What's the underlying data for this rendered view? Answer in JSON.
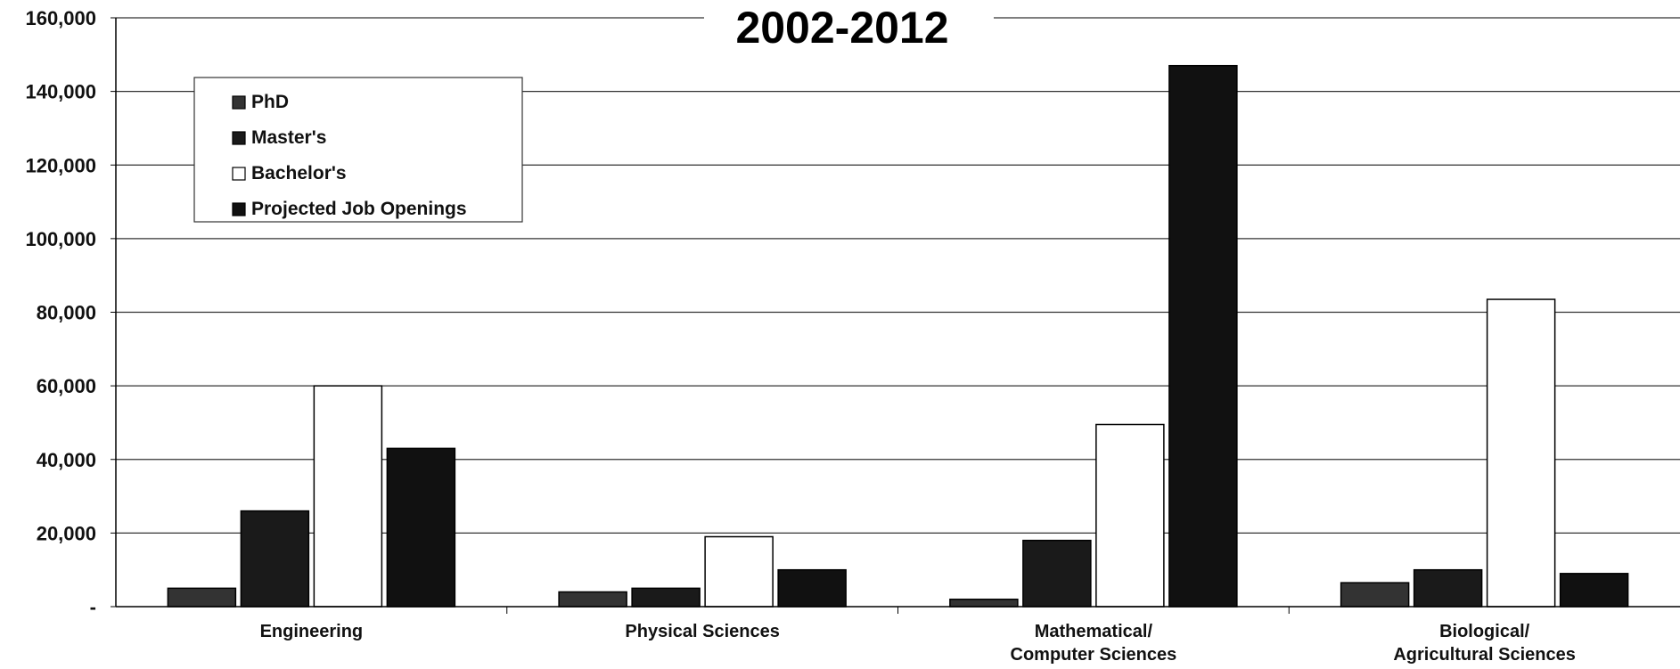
{
  "chart_data": {
    "type": "bar",
    "title": "2002-2012",
    "categories": [
      [
        "Engineering"
      ],
      [
        "Physical Sciences"
      ],
      [
        "Mathematical/",
        "Computer Sciences"
      ],
      [
        "Biological/",
        "Agricultural Sciences"
      ]
    ],
    "series": [
      {
        "name": "PhD",
        "values": [
          5000,
          4000,
          2000,
          6500
        ],
        "color": "#333333"
      },
      {
        "name": "Master's",
        "values": [
          26000,
          5000,
          18000,
          10000
        ],
        "color": "#1a1a1a"
      },
      {
        "name": "Bachelor's",
        "values": [
          60000,
          19000,
          49500,
          83500
        ],
        "color": "#ffffff"
      },
      {
        "name": "Projected Job Openings",
        "values": [
          43000,
          10000,
          147000,
          9000
        ],
        "color": "#111111"
      }
    ],
    "ylim": [
      0,
      160000
    ],
    "yticks": [
      0,
      20000,
      40000,
      60000,
      80000,
      100000,
      120000,
      140000,
      160000
    ],
    "ytick_labels": [
      "-",
      "20,000",
      "40,000",
      "60,000",
      "80,000",
      "100,000",
      "120,000",
      "140,000",
      "160,000"
    ],
    "grid": true,
    "legend_position": "top-left"
  }
}
